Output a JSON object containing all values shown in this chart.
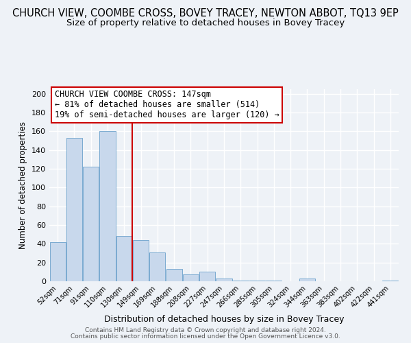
{
  "title": "CHURCH VIEW, COOMBE CROSS, BOVEY TRACEY, NEWTON ABBOT, TQ13 9EP",
  "subtitle": "Size of property relative to detached houses in Bovey Tracey",
  "xlabel": "Distribution of detached houses by size in Bovey Tracey",
  "ylabel": "Number of detached properties",
  "footer_line1": "Contains HM Land Registry data © Crown copyright and database right 2024.",
  "footer_line2": "Contains public sector information licensed under the Open Government Licence v3.0.",
  "categories": [
    "52sqm",
    "71sqm",
    "91sqm",
    "110sqm",
    "130sqm",
    "149sqm",
    "169sqm",
    "188sqm",
    "208sqm",
    "227sqm",
    "247sqm",
    "266sqm",
    "285sqm",
    "305sqm",
    "324sqm",
    "344sqm",
    "363sqm",
    "383sqm",
    "402sqm",
    "422sqm",
    "441sqm"
  ],
  "values": [
    42,
    153,
    122,
    160,
    48,
    44,
    31,
    13,
    7,
    10,
    3,
    1,
    1,
    1,
    0,
    3,
    0,
    0,
    0,
    0,
    1
  ],
  "bar_color": "#c8d8ec",
  "bar_edge_color": "#7aaad0",
  "vline_color": "#cc0000",
  "annotation_title": "CHURCH VIEW COOMBE CROSS: 147sqm",
  "annotation_line2": "← 81% of detached houses are smaller (514)",
  "annotation_line3": "19% of semi-detached houses are larger (120) →",
  "annotation_box_color": "#cc0000",
  "ylim": [
    0,
    205
  ],
  "yticks": [
    0,
    20,
    40,
    60,
    80,
    100,
    120,
    140,
    160,
    180,
    200
  ],
  "background_color": "#eef2f7",
  "plot_background": "#eef2f7",
  "grid_color": "#ffffff",
  "title_fontsize": 10.5,
  "subtitle_fontsize": 9.5
}
